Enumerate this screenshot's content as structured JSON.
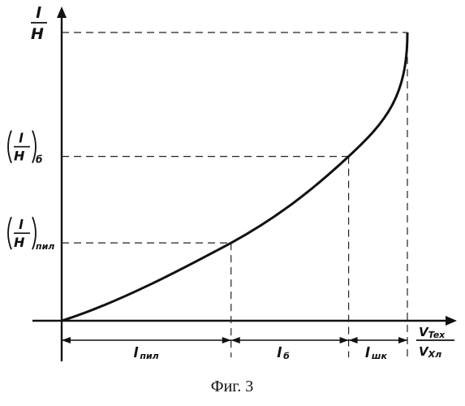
{
  "chart_data": {
    "type": "line",
    "title": "",
    "y_axis_label": {
      "num": "l",
      "den": "H"
    },
    "x_axis_label": {
      "num": "V_Tex",
      "den": "V_Xл"
    },
    "y_ticks": [
      {
        "num": "l",
        "den": "H",
        "sub": "пил"
      },
      {
        "num": "l",
        "den": "H",
        "sub": "б"
      }
    ],
    "segments": [
      {
        "label": "l",
        "sub": "пил"
      },
      {
        "label": "l",
        "sub": "б"
      },
      {
        "label": "l",
        "sub": "шк"
      }
    ],
    "curve": {
      "description_points": [
        {
          "x": 0.0,
          "y": 0.0
        },
        {
          "x": 0.49,
          "y": 0.27
        },
        {
          "x": 0.83,
          "y": 0.57
        },
        {
          "x": 1.0,
          "y": 1.0
        }
      ]
    },
    "grid": false
  },
  "caption": "Фиг. 3"
}
